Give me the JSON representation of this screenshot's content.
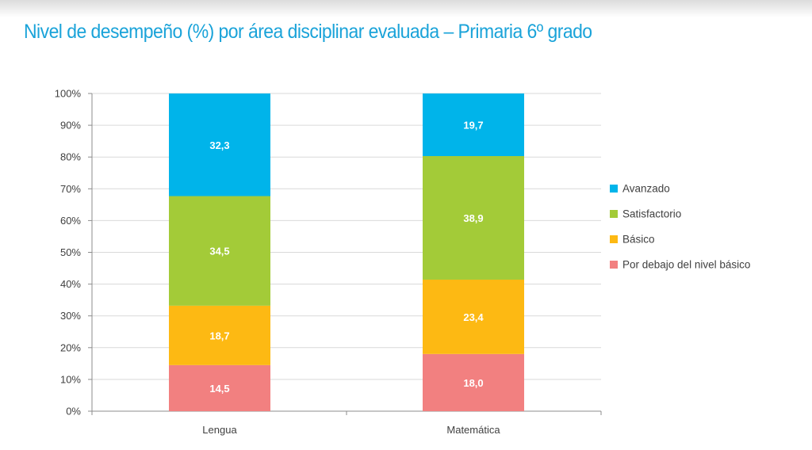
{
  "title": "Nivel de desempeño (%) por área disciplinar evaluada – Primaria 6º grado",
  "chart_data": {
    "type": "bar",
    "stacked": true,
    "title": "Nivel de desempeño (%) por área disciplinar evaluada – Primaria 6º grado",
    "categories": [
      "Lengua",
      "Matemática"
    ],
    "series": [
      {
        "name": "Por debajo del nivel básico",
        "values": [
          14.5,
          18.0
        ],
        "labels": [
          "14,5",
          "18,0"
        ],
        "color": "#f28080"
      },
      {
        "name": "Básico",
        "values": [
          18.7,
          23.4
        ],
        "labels": [
          "18,7",
          "23,4"
        ],
        "color": "#fdb913"
      },
      {
        "name": "Satisfactorio",
        "values": [
          34.5,
          38.9
        ],
        "labels": [
          "34,5",
          "38,9"
        ],
        "color": "#a3cb38"
      },
      {
        "name": "Avanzado",
        "values": [
          32.3,
          19.7
        ],
        "labels": [
          "32,3",
          "19,7"
        ],
        "color": "#00b4ea"
      }
    ],
    "yticks": [
      "0%",
      "10%",
      "20%",
      "30%",
      "40%",
      "50%",
      "60%",
      "70%",
      "80%",
      "90%",
      "100%"
    ],
    "ylim": [
      0,
      100
    ],
    "grid": true,
    "legend_position": "right",
    "legend_order": [
      "Avanzado",
      "Satisfactorio",
      "Básico",
      "Por debajo del nivel básico"
    ]
  }
}
